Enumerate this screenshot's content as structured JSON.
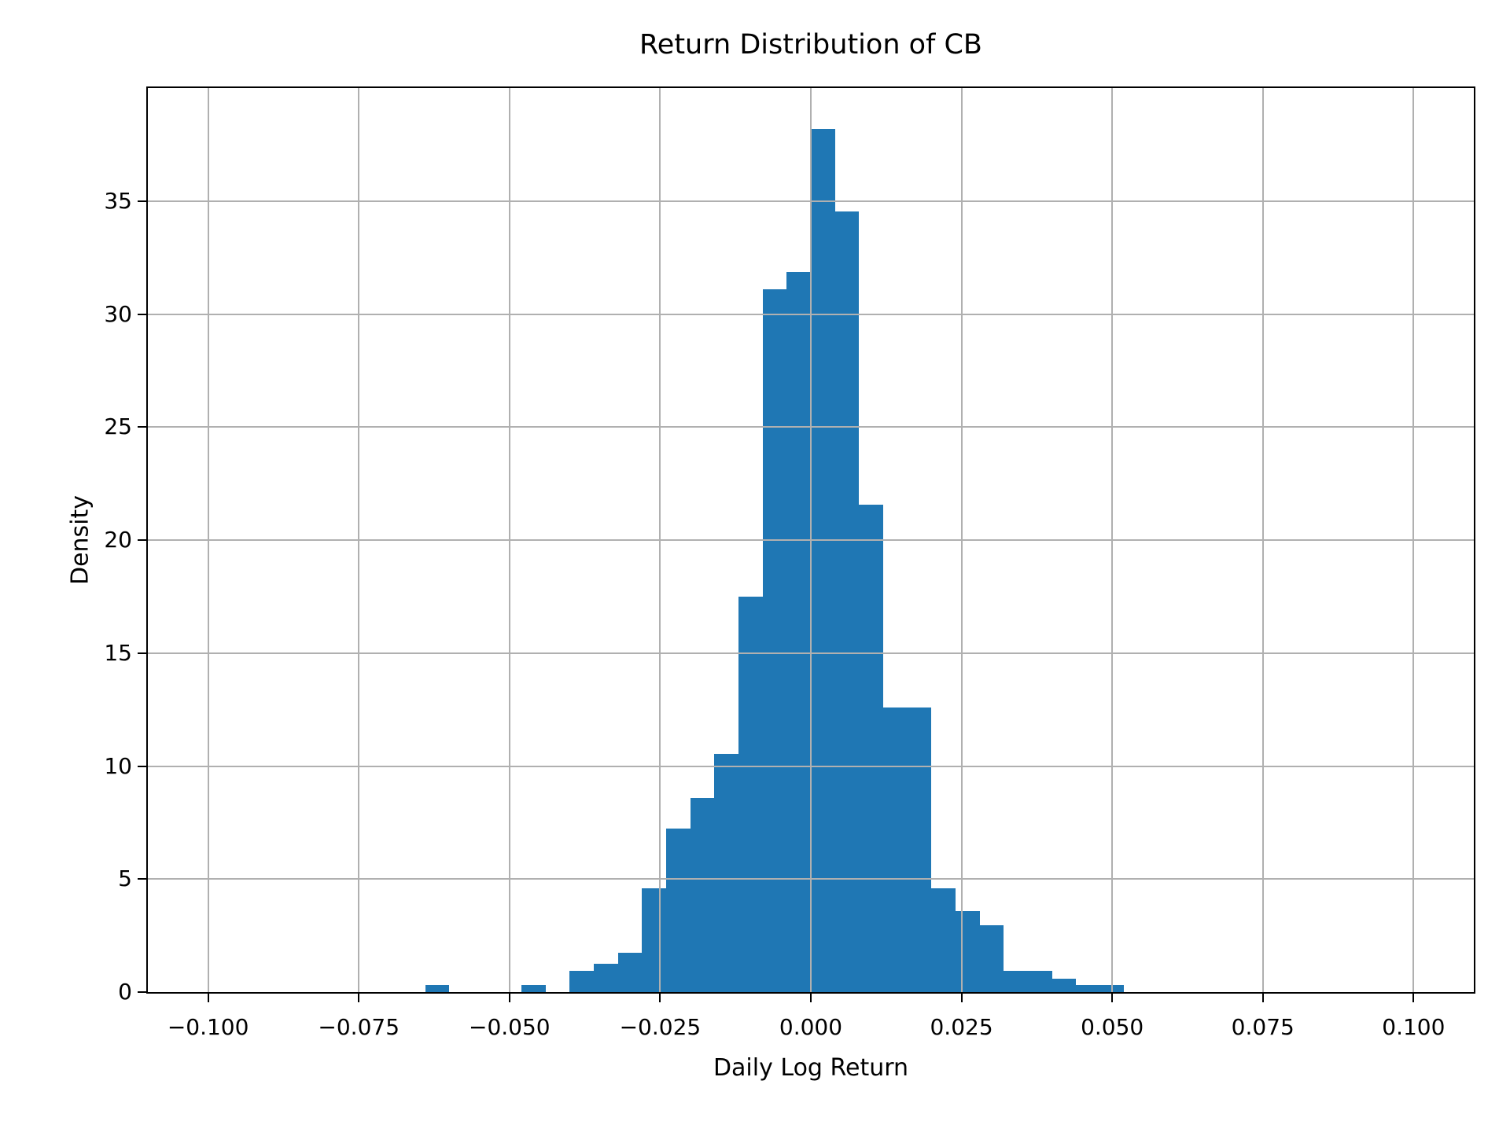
{
  "chart_data": {
    "type": "bar",
    "subtype": "histogram",
    "title": "Return Distribution of CB",
    "xlabel": "Daily Log Return",
    "ylabel": "Density",
    "xlim": [
      -0.11,
      0.11
    ],
    "ylim": [
      0,
      40
    ],
    "grid": true,
    "legend": "none",
    "bar_color": "#1f77b4",
    "grid_color": "#b0b0b0",
    "spine_color": "#000000",
    "background_color": "#ffffff",
    "bin_width": 0.004,
    "x_ticks": [
      {
        "v": -0.1,
        "label": "−0.100"
      },
      {
        "v": -0.075,
        "label": "−0.075"
      },
      {
        "v": -0.05,
        "label": "−0.050"
      },
      {
        "v": -0.025,
        "label": "−0.025"
      },
      {
        "v": 0.0,
        "label": "0.000"
      },
      {
        "v": 0.025,
        "label": "0.025"
      },
      {
        "v": 0.05,
        "label": "0.050"
      },
      {
        "v": 0.075,
        "label": "0.075"
      },
      {
        "v": 0.1,
        "label": "0.100"
      }
    ],
    "y_ticks": [
      {
        "v": 0,
        "label": "0"
      },
      {
        "v": 5,
        "label": "5"
      },
      {
        "v": 10,
        "label": "10"
      },
      {
        "v": 15,
        "label": "15"
      },
      {
        "v": 20,
        "label": "20"
      },
      {
        "v": 25,
        "label": "25"
      },
      {
        "v": 30,
        "label": "30"
      },
      {
        "v": 35,
        "label": "35"
      }
    ],
    "bins": [
      {
        "x0": -0.064,
        "x1": -0.06,
        "density": 0.3
      },
      {
        "x0": -0.06,
        "x1": -0.056,
        "density": 0
      },
      {
        "x0": -0.056,
        "x1": -0.052,
        "density": 0
      },
      {
        "x0": -0.052,
        "x1": -0.048,
        "density": 0
      },
      {
        "x0": -0.048,
        "x1": -0.044,
        "density": 0.3
      },
      {
        "x0": -0.044,
        "x1": -0.04,
        "density": 0
      },
      {
        "x0": -0.04,
        "x1": -0.036,
        "density": 0.95
      },
      {
        "x0": -0.036,
        "x1": -0.032,
        "density": 1.25
      },
      {
        "x0": -0.032,
        "x1": -0.028,
        "density": 1.75
      },
      {
        "x0": -0.028,
        "x1": -0.024,
        "density": 4.6
      },
      {
        "x0": -0.024,
        "x1": -0.02,
        "density": 7.25
      },
      {
        "x0": -0.02,
        "x1": -0.016,
        "density": 8.6
      },
      {
        "x0": -0.016,
        "x1": -0.012,
        "density": 10.55
      },
      {
        "x0": -0.012,
        "x1": -0.008,
        "density": 17.5
      },
      {
        "x0": -0.008,
        "x1": -0.004,
        "density": 31.1
      },
      {
        "x0": -0.004,
        "x1": 0.0,
        "density": 31.85
      },
      {
        "x0": 0.0,
        "x1": 0.004,
        "density": 38.2
      },
      {
        "x0": 0.004,
        "x1": 0.008,
        "density": 34.55
      },
      {
        "x0": 0.008,
        "x1": 0.012,
        "density": 21.55
      },
      {
        "x0": 0.012,
        "x1": 0.016,
        "density": 12.6
      },
      {
        "x0": 0.016,
        "x1": 0.02,
        "density": 12.6
      },
      {
        "x0": 0.02,
        "x1": 0.024,
        "density": 4.6
      },
      {
        "x0": 0.024,
        "x1": 0.028,
        "density": 3.6
      },
      {
        "x0": 0.028,
        "x1": 0.032,
        "density": 2.95
      },
      {
        "x0": 0.032,
        "x1": 0.036,
        "density": 0.95
      },
      {
        "x0": 0.036,
        "x1": 0.04,
        "density": 0.95
      },
      {
        "x0": 0.04,
        "x1": 0.044,
        "density": 0.6
      },
      {
        "x0": 0.044,
        "x1": 0.048,
        "density": 0.3
      },
      {
        "x0": 0.048,
        "x1": 0.052,
        "density": 0.3
      }
    ]
  }
}
